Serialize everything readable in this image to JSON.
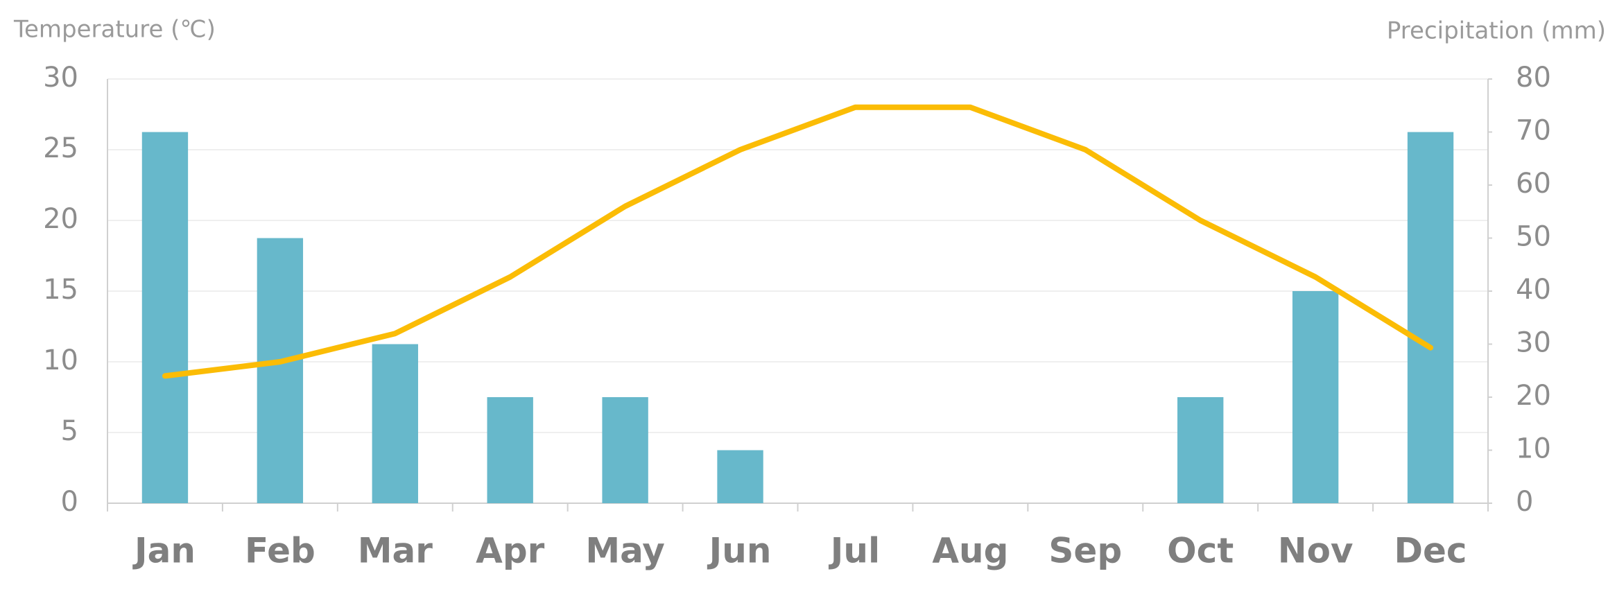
{
  "chart_data": {
    "type": "combo",
    "y_label": "Temperature (℃)",
    "y2_label": "Precipitation (mm)",
    "categories": [
      "Jan",
      "Feb",
      "Mar",
      "Apr",
      "May",
      "Jun",
      "Jul",
      "Aug",
      "Sep",
      "Oct",
      "Nov",
      "Dec"
    ],
    "series": [
      {
        "type": "bar",
        "axis": "y2",
        "color": "#67b8cb",
        "values": [
          70,
          50,
          30,
          20,
          20,
          10,
          0,
          0,
          0,
          20,
          40,
          70
        ]
      },
      {
        "type": "line",
        "axis": "y",
        "color": "#fbbc05",
        "values": [
          9,
          10,
          12,
          16,
          21,
          25,
          28,
          28,
          25,
          20,
          16,
          11
        ]
      }
    ],
    "ylim": [
      0,
      30
    ],
    "yticks": [
      0,
      5,
      10,
      15,
      20,
      25,
      30
    ],
    "y2lim": [
      0,
      80
    ],
    "y2ticks": [
      0,
      10,
      20,
      30,
      40,
      50,
      60,
      70,
      80
    ],
    "grid": true
  }
}
